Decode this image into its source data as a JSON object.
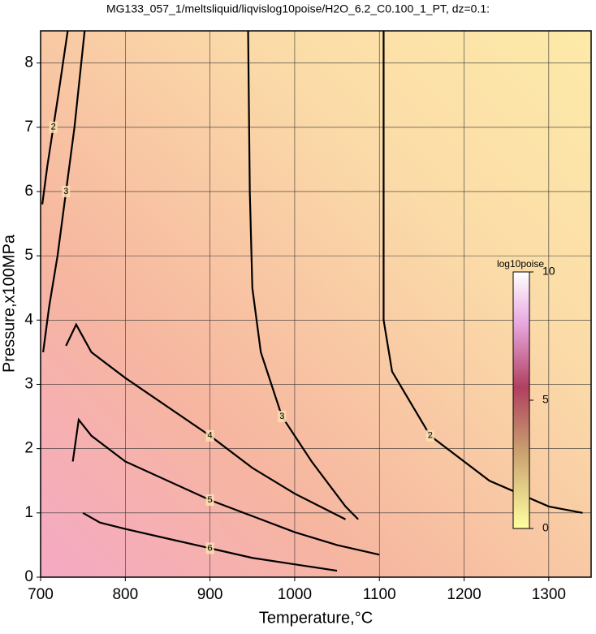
{
  "chart_data": {
    "type": "contour",
    "title": "MG133_057_1/meltsliquid/liqvislog10poise/H2O_6.2_C0.100_1_PT, dz=0.1:",
    "x_label": "Temperature,°C",
    "y_label": "Pressure,x100MPa",
    "xlim": [
      700,
      1350
    ],
    "ylim": [
      0,
      8.5
    ],
    "xticks": [
      700,
      800,
      900,
      1000,
      1100,
      1200,
      1300
    ],
    "yticks": [
      0,
      1,
      2,
      3,
      4,
      5,
      6,
      7,
      8
    ],
    "grid": true,
    "contours": [
      {
        "level": 3,
        "x": [
          945,
          947,
          950,
          960,
          985,
          1020,
          1060,
          1075
        ],
        "y": [
          8.5,
          6,
          4.5,
          3.5,
          2.5,
          1.8,
          1.1,
          0.9
        ]
      },
      {
        "level": 2,
        "x": [
          1105,
          1105,
          1115,
          1160,
          1230,
          1300,
          1340
        ],
        "y": [
          8.5,
          4,
          3.2,
          2.2,
          1.5,
          1.1,
          1.0
        ]
      },
      {
        "level": 4,
        "x": [
          730,
          742,
          760,
          800,
          900,
          950,
          1000,
          1060
        ],
        "y": [
          3.6,
          3.93,
          3.5,
          3.1,
          2.2,
          1.7,
          1.3,
          0.9
        ]
      },
      {
        "level": 5,
        "x": [
          738,
          745,
          760,
          800,
          900,
          950,
          1000,
          1050,
          1100
        ],
        "y": [
          1.8,
          2.45,
          2.2,
          1.8,
          1.2,
          0.95,
          0.7,
          0.5,
          0.35
        ]
      },
      {
        "level": 6,
        "x": [
          750,
          770,
          800,
          850,
          900,
          950,
          1000,
          1050
        ],
        "y": [
          1.0,
          0.85,
          0.75,
          0.6,
          0.45,
          0.3,
          0.2,
          0.1
        ]
      },
      {
        "level": 3,
        "x": [
          703,
          710,
          720,
          730,
          740,
          752
        ],
        "y": [
          3.5,
          4.2,
          5.0,
          6.0,
          7.0,
          8.5
        ]
      },
      {
        "level": 2,
        "x": [
          702,
          708,
          715,
          722,
          732
        ],
        "y": [
          5.8,
          6.4,
          7.0,
          7.6,
          8.5
        ]
      }
    ],
    "colorbar": {
      "label": "log10poise",
      "lim": [
        0,
        10
      ],
      "ticks": [
        0,
        5,
        10
      ]
    }
  }
}
